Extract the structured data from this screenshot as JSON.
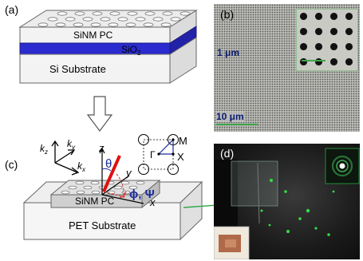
{
  "panels": {
    "a": {
      "label": "(a)",
      "layer_pc": "SiNM PC",
      "layer_oxide": "SiO",
      "layer_oxide_sub": "2",
      "layer_substrate": "Si Substrate"
    },
    "b": {
      "label": "(b)",
      "scale_large": "10 μm",
      "scale_small": "1 μm"
    },
    "c": {
      "label": "(c)",
      "kz": "k",
      "kz_sub": "z",
      "ky": "k",
      "ky_sub": "y",
      "kx": "k",
      "kx_sub": "x",
      "axis_z": "z",
      "axis_y": "y",
      "axis_x": "x",
      "theta": "θ",
      "phi_psi": "ϕ, Ψ",
      "gamma": "Γ",
      "point_m": "M",
      "point_x": "X",
      "layer_pc": "SiNM PC",
      "layer_substrate": "PET Substrate"
    },
    "d": {
      "label": "(d)"
    }
  },
  "colors": {
    "oxide": "#2b2bd0",
    "incident_beam": "#e01010",
    "angle_arc": "#d83030",
    "symbols": "#1a2a9a",
    "scale_bar": "#3da64a",
    "laser_spot": "#33dd44"
  }
}
